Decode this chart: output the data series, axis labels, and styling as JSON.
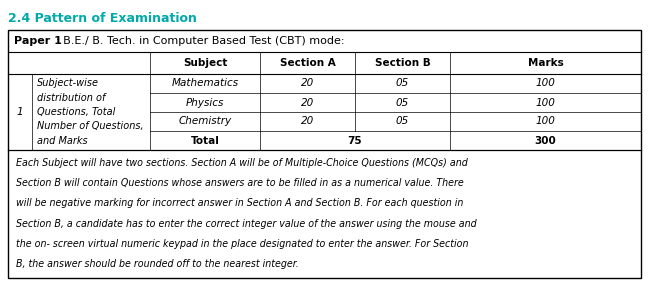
{
  "title": "2.4 Pattern of Examination",
  "title_color": "#00AAAA",
  "paper_label": "Paper 1",
  "paper_colon": ": B.E./ B. Tech. in Computer Based Test (CBT) mode:",
  "header_row": [
    "Subject",
    "Section A",
    "Section B",
    "Marks"
  ],
  "row_label_lines": [
    "Subject-wise",
    "distribution of",
    "Questions, Total",
    "Number of Questions,",
    "and Marks"
  ],
  "row_number": "1",
  "data_rows": [
    [
      "Mathematics",
      "20",
      "05",
      "100"
    ],
    [
      "Physics",
      "20",
      "05",
      "100"
    ],
    [
      "Chemistry",
      "20",
      "05",
      "100"
    ],
    [
      "Total",
      "75",
      "",
      "300"
    ]
  ],
  "footnote_lines": [
    "Each Subject will have two sections. Section A will be of Multiple-Choice Questions (MCQs) and",
    "Section B will contain Questions whose answers are to be filled in as a numerical value. There",
    "will be negative marking for incorrect answer in Section A and Section B. For each question in",
    "Section B, a candidate has to enter the correct integer value of the answer using the mouse and",
    "the on- screen virtual numeric keypad in the place designated to enter the answer. For Section",
    "B, the answer should be rounded off to the nearest integer."
  ],
  "bg_color": "#ffffff",
  "figsize": [
    6.49,
    2.85
  ],
  "dpi": 100
}
